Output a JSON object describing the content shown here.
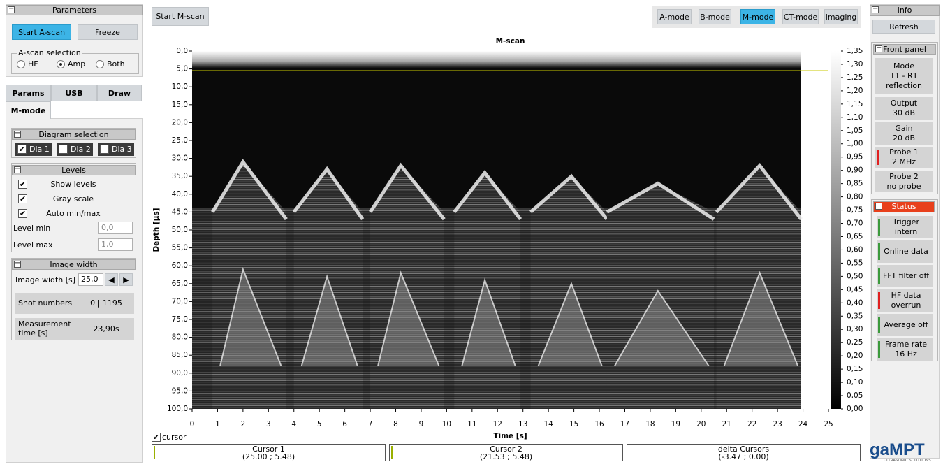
{
  "parameters": {
    "title": "Parameters",
    "start_button": "Start A-scan",
    "freeze_button": "Freeze",
    "selection_title": "A-scan selection",
    "options": [
      "HF",
      "Amp",
      "Both"
    ],
    "selected": 1
  },
  "tabs": [
    "Params",
    "USB",
    "Draw",
    "M-mode"
  ],
  "diagram_selection": {
    "title": "Diagram selection",
    "items": [
      "Dia 1",
      "Dia 2",
      "Dia 3"
    ]
  },
  "levels": {
    "title": "Levels",
    "checks": [
      "Show levels",
      "Gray scale",
      "Auto min/max"
    ],
    "min_label": "Level min",
    "min_value": "0,0",
    "max_label": "Level max",
    "max_value": "1,0"
  },
  "image_width": {
    "title": "Image width",
    "label": "Image width [s]",
    "value": "25,0",
    "shot_label": "Shot numbers",
    "shot_value": "0 | 1195",
    "time_label": "Measurement time [s]",
    "time_value": "23,90s"
  },
  "toolbar": {
    "start": "Start M-scan",
    "modes": [
      "A-mode",
      "B-mode",
      "M-mode",
      "CT-mode",
      "Imaging"
    ],
    "active": 2
  },
  "chart_data": {
    "type": "heatmap",
    "title": "M-scan",
    "x_label": "Time [s]",
    "y_label": "Depth [µs]",
    "xlim": [
      0,
      25
    ],
    "xticks": [
      0,
      1,
      2,
      3,
      4,
      5,
      6,
      7,
      8,
      9,
      10,
      11,
      12,
      13,
      14,
      15,
      16,
      17,
      18,
      19,
      20,
      21,
      22,
      23,
      24,
      25
    ],
    "ylim": [
      0,
      100
    ],
    "y_reversed": true,
    "yticks": [
      {
        "value": 0,
        "label": "0,0"
      },
      {
        "value": 5,
        "label": "5,0"
      },
      {
        "value": 10,
        "label": "10,0"
      },
      {
        "value": 15,
        "label": "15,0"
      },
      {
        "value": 20,
        "label": "20,0"
      },
      {
        "value": 25,
        "label": "25,0"
      },
      {
        "value": 30,
        "label": "30,0"
      },
      {
        "value": 35,
        "label": "35,0"
      },
      {
        "value": 40,
        "label": "40,0"
      },
      {
        "value": 45,
        "label": "45,0"
      },
      {
        "value": 50,
        "label": "50,0"
      },
      {
        "value": 55,
        "label": "55,0"
      },
      {
        "value": 60,
        "label": "60,0"
      },
      {
        "value": 65,
        "label": "65,0"
      },
      {
        "value": 70,
        "label": "70,0"
      },
      {
        "value": 75,
        "label": "75,0"
      },
      {
        "value": 80,
        "label": "80,0"
      },
      {
        "value": 85,
        "label": "85,0"
      },
      {
        "value": 90,
        "label": "90,0"
      },
      {
        "value": 95,
        "label": "95,0"
      },
      {
        "value": 100,
        "label": "100,0"
      }
    ],
    "colorbar": {
      "lim": [
        0,
        1.35
      ],
      "ticks": [
        {
          "value": 0,
          "label": "0,00"
        },
        {
          "value": 0.05,
          "label": "0,05"
        },
        {
          "value": 0.1,
          "label": "0,10"
        },
        {
          "value": 0.15,
          "label": "0,15"
        },
        {
          "value": 0.2,
          "label": "0,20"
        },
        {
          "value": 0.25,
          "label": "0,25"
        },
        {
          "value": 0.3,
          "label": "0,30"
        },
        {
          "value": 0.35,
          "label": "0,35"
        },
        {
          "value": 0.4,
          "label": "0,40"
        },
        {
          "value": 0.45,
          "label": "0,45"
        },
        {
          "value": 0.5,
          "label": "0,50"
        },
        {
          "value": 0.55,
          "label": "0,55"
        },
        {
          "value": 0.6,
          "label": "0,60"
        },
        {
          "value": 0.65,
          "label": "0,65"
        },
        {
          "value": 0.7,
          "label": "0,70"
        },
        {
          "value": 0.75,
          "label": "0,75"
        },
        {
          "value": 0.8,
          "label": "0,80"
        },
        {
          "value": 0.85,
          "label": "0,85"
        },
        {
          "value": 0.9,
          "label": "0,90"
        },
        {
          "value": 0.95,
          "label": "0,95"
        },
        {
          "value": 1,
          "label": "1,00"
        },
        {
          "value": 1.05,
          "label": "1,05"
        },
        {
          "value": 1.1,
          "label": "1,10"
        },
        {
          "value": 1.15,
          "label": "1,15"
        },
        {
          "value": 1.2,
          "label": "1,20"
        },
        {
          "value": 1.25,
          "label": "1,25"
        },
        {
          "value": 1.3,
          "label": "1,30"
        },
        {
          "value": 1.35,
          "label": "1,35"
        }
      ]
    },
    "cursor_y": 5.48,
    "cursor_color": "#c8c800"
  },
  "cursor": {
    "label": "cursor",
    "boxes": [
      {
        "title": "Cursor 1",
        "value": "(25.00 ; 5.48)"
      },
      {
        "title": "Cursor 2",
        "value": "(21.53 ; 5.48)"
      },
      {
        "title": "delta Cursors",
        "value": "(-3.47 ; 0.00)"
      }
    ]
  },
  "info": {
    "title": "Info",
    "refresh": "Refresh"
  },
  "front_panel": {
    "title": "Front panel",
    "items": [
      {
        "label": "Mode",
        "value": "T1 - R1 reflection"
      },
      {
        "label": "Output",
        "value": "30 dB"
      },
      {
        "label": "Gain",
        "value": "20 dB"
      },
      {
        "label": "Probe 1",
        "value": "2 MHz",
        "indicator": "#e02020"
      },
      {
        "label": "Probe 2",
        "value": "no probe"
      }
    ]
  },
  "status": {
    "title": "Status",
    "items": [
      {
        "label": "Trigger intern",
        "indicator": "#3c9a3c"
      },
      {
        "label": "Online data",
        "indicator": "#3c9a3c"
      },
      {
        "label": "FFT filter off",
        "indicator": "#3c9a3c"
      },
      {
        "label": "HF data overrun",
        "indicator": "#e02020"
      },
      {
        "label": "Average off",
        "indicator": "#3c9a3c"
      },
      {
        "label": "Frame rate 16 Hz",
        "indicator": "#3c9a3c"
      }
    ]
  },
  "logo": {
    "name": "gaMPT",
    "tagline": "ULTRASONIC SOLUTIONS"
  }
}
